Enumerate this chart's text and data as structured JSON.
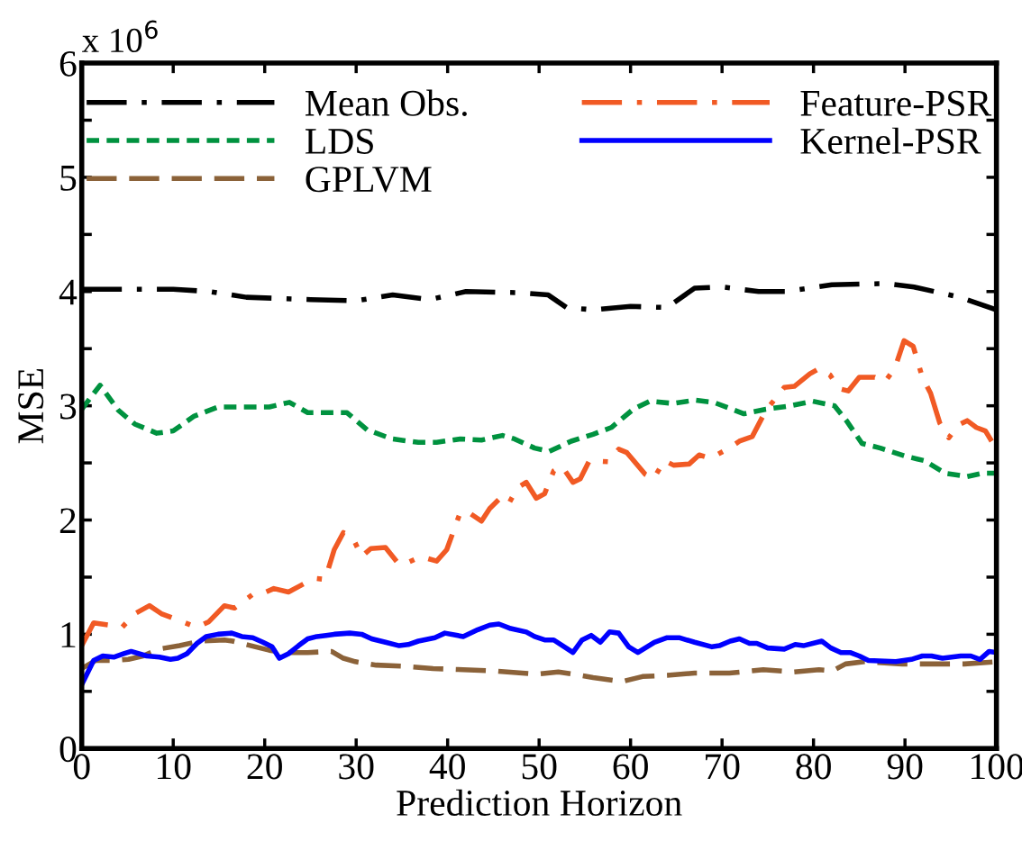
{
  "chart_data": {
    "type": "line",
    "xlabel": "Prediction Horizon",
    "ylabel": "MSE",
    "annotations": [
      "x 10$^{6}$"
    ],
    "xlim": [
      0,
      100
    ],
    "xticks": [
      0,
      10,
      20,
      30,
      40,
      50,
      60,
      70,
      80,
      90,
      100
    ],
    "ylim": [
      0,
      6
    ],
    "yticks": [
      0,
      {
        "value": 0.5,
        "label": null
      },
      1,
      {
        "value": 1.5,
        "label": null
      },
      2,
      {
        "value": 2.5,
        "label": null
      },
      3,
      {
        "value": 3.5,
        "label": null
      },
      4,
      {
        "value": 4.5,
        "label": null
      },
      5,
      {
        "value": 5.5,
        "label": null
      },
      6
    ],
    "grid": false,
    "legend": "top",
    "marker": "none",
    "series": [
      {
        "name": "Mean Obs.",
        "color": "#000000",
        "line_style": "dashdot",
        "x": [
          0,
          5,
          10,
          14,
          18,
          25,
          30,
          34,
          38,
          42,
          48,
          51,
          53,
          56,
          60,
          64,
          67,
          70,
          74,
          77,
          82,
          88,
          91,
          96,
          100
        ],
        "values": [
          4.02,
          4.02,
          4.02,
          4.0,
          3.95,
          3.93,
          3.92,
          3.97,
          3.93,
          4.0,
          3.99,
          3.97,
          3.86,
          3.84,
          3.87,
          3.86,
          4.03,
          4.04,
          4.0,
          4.0,
          4.06,
          4.07,
          4.04,
          3.95,
          3.84
        ]
      },
      {
        "name": "LDS",
        "color": "#00923f",
        "line_style": "dotted",
        "x": [
          0,
          2.0,
          4.0,
          5.8,
          8.2,
          10,
          12.3,
          14.9,
          17.5,
          20.5,
          22.7,
          24.7,
          27,
          29,
          31.2,
          33.9,
          36.8,
          38.8,
          41.4,
          43.7,
          46,
          47.3,
          49.5,
          51.1,
          53.5,
          55.9,
          57.9,
          60.3,
          62.1,
          64.7,
          67.0,
          69.1,
          72.4,
          74.8,
          77.5,
          79.9,
          82.3,
          83.6,
          85.3,
          87.3,
          90.0,
          92.1,
          94.4,
          96.8,
          98.5,
          100
        ],
        "values": [
          2.97,
          3.18,
          2.96,
          2.84,
          2.76,
          2.78,
          2.91,
          2.99,
          2.99,
          2.99,
          3.03,
          2.94,
          2.94,
          2.94,
          2.79,
          2.71,
          2.68,
          2.68,
          2.71,
          2.7,
          2.74,
          2.71,
          2.63,
          2.6,
          2.69,
          2.75,
          2.81,
          2.97,
          3.04,
          3.02,
          3.05,
          3.03,
          2.93,
          2.97,
          3.0,
          3.04,
          3.0,
          2.87,
          2.67,
          2.63,
          2.56,
          2.52,
          2.41,
          2.38,
          2.41,
          2.41
        ]
      },
      {
        "name": "GPLVM",
        "color": "#8b6239",
        "line_style": "dashed",
        "x": [
          0,
          1.5,
          3.5,
          5.1,
          6.7,
          8.4,
          10.7,
          12.9,
          15.6,
          16.5,
          18.5,
          20.5,
          22.1,
          24.7,
          27.3,
          28.6,
          29.9,
          32.2,
          35.2,
          38.4,
          41.7,
          45,
          49.7,
          52.1,
          53.8,
          55.9,
          58.6,
          59.3,
          61.3,
          64,
          67,
          70.8,
          74.5,
          77.9,
          80.6,
          82.1,
          83.5,
          85.6,
          89.7,
          93.1,
          96.5,
          100
        ],
        "values": [
          0.7,
          0.77,
          0.77,
          0.78,
          0.81,
          0.87,
          0.9,
          0.94,
          0.95,
          0.94,
          0.9,
          0.86,
          0.84,
          0.84,
          0.85,
          0.79,
          0.76,
          0.73,
          0.72,
          0.7,
          0.69,
          0.68,
          0.65,
          0.67,
          0.65,
          0.62,
          0.59,
          0.59,
          0.63,
          0.64,
          0.66,
          0.66,
          0.69,
          0.67,
          0.69,
          0.68,
          0.74,
          0.76,
          0.74,
          0.74,
          0.74,
          0.76
        ]
      },
      {
        "name": "Feature-PSR",
        "color": "#f15a24",
        "line_style": "dashdot",
        "x": [
          0,
          1.3,
          3.1,
          4.4,
          5.8,
          7.4,
          8.7,
          9.7,
          11.3,
          12.6,
          13.9,
          15.6,
          16.7,
          18.7,
          19.6,
          21,
          22.6,
          24,
          25.4,
          26.6,
          27.6,
          28.6,
          29.6,
          30.6,
          31.6,
          33.2,
          34.7,
          35.7,
          37.1,
          38.8,
          39.9,
          41.4,
          42.4,
          43.7,
          44.6,
          45.6,
          46.6,
          47.6,
          48.6,
          49.7,
          50.6,
          51.6,
          52.5,
          53.7,
          54.5,
          55.5,
          57.6,
          58.7,
          59.6,
          61.6,
          62.5,
          63.7,
          64.7,
          66.4,
          67.5,
          68.7,
          70.8,
          71.9,
          73.3,
          74.8,
          76.8,
          77.9,
          79.6,
          80.7,
          81.8,
          82.8,
          83.8,
          85,
          86.7,
          87.8,
          88.9,
          89.9,
          90.9,
          91.9,
          92.8,
          93.8,
          94.8,
          95.8,
          96.8,
          97.8,
          98.8,
          100
        ],
        "values": [
          0.9,
          1.1,
          1.08,
          1.06,
          1.18,
          1.25,
          1.18,
          1.15,
          1.1,
          1.06,
          1.11,
          1.25,
          1.23,
          1.35,
          1.35,
          1.4,
          1.37,
          1.43,
          1.49,
          1.48,
          1.74,
          1.89,
          1.85,
          1.68,
          1.75,
          1.76,
          1.61,
          1.63,
          1.68,
          1.64,
          1.74,
          2.07,
          2.06,
          1.99,
          2.1,
          2.18,
          2.13,
          2.28,
          2.33,
          2.19,
          2.23,
          2.43,
          2.47,
          2.33,
          2.36,
          2.52,
          2.51,
          2.62,
          2.59,
          2.4,
          2.36,
          2.52,
          2.48,
          2.49,
          2.57,
          2.54,
          2.63,
          2.69,
          2.73,
          2.96,
          3.16,
          3.17,
          3.28,
          3.33,
          3.27,
          3.15,
          3.13,
          3.25,
          3.25,
          3.21,
          3.33,
          3.57,
          3.52,
          3.25,
          3.11,
          2.85,
          2.72,
          2.83,
          2.87,
          2.81,
          2.78,
          2.62
        ]
      },
      {
        "name": "Kernel-PSR",
        "color": "#0000ff",
        "line_style": "solid",
        "x": [
          0,
          1.3,
          2.3,
          3.5,
          4.6,
          5.4,
          7.1,
          8.5,
          9.7,
          10.5,
          11.5,
          12.6,
          13.6,
          14.9,
          16.4,
          17.5,
          18.7,
          19.8,
          20.8,
          21.6,
          22.6,
          23.7,
          24.7,
          25.7,
          26.7,
          27.6,
          29.3,
          30.6,
          31.7,
          33.2,
          34.7,
          35.7,
          36.8,
          38.6,
          39.7,
          41.7,
          43.3,
          44.6,
          45.6,
          46.9,
          48.6,
          49.5,
          50.6,
          51.6,
          53.7,
          54.7,
          55.7,
          56.7,
          57.7,
          58.7,
          59.8,
          60.8,
          62.6,
          64,
          65.3,
          67,
          68.9,
          69.7,
          70.9,
          71.9,
          73,
          73.8,
          75,
          76.8,
          78,
          78.9,
          80.9,
          81.9,
          83,
          84,
          85,
          86,
          89,
          90.7,
          91.9,
          92.9,
          94.1,
          96.1,
          97.2,
          98.2,
          99.2,
          100
        ],
        "values": [
          0.56,
          0.77,
          0.81,
          0.8,
          0.83,
          0.85,
          0.81,
          0.8,
          0.78,
          0.79,
          0.83,
          0.92,
          0.98,
          1.0,
          1.01,
          0.98,
          0.97,
          0.93,
          0.89,
          0.79,
          0.83,
          0.9,
          0.96,
          0.98,
          0.99,
          1.0,
          1.01,
          1.0,
          0.96,
          0.93,
          0.9,
          0.91,
          0.94,
          0.97,
          1.01,
          0.98,
          1.04,
          1.08,
          1.09,
          1.05,
          1.02,
          0.98,
          0.95,
          0.95,
          0.84,
          0.95,
          0.99,
          0.93,
          1.02,
          1.01,
          0.89,
          0.84,
          0.93,
          0.97,
          0.97,
          0.93,
          0.89,
          0.9,
          0.94,
          0.96,
          0.92,
          0.92,
          0.88,
          0.87,
          0.91,
          0.9,
          0.94,
          0.88,
          0.84,
          0.84,
          0.81,
          0.77,
          0.76,
          0.78,
          0.81,
          0.81,
          0.79,
          0.81,
          0.81,
          0.78,
          0.85,
          0.84
        ]
      }
    ]
  }
}
